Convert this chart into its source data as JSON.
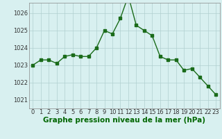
{
  "x": [
    0,
    1,
    2,
    3,
    4,
    5,
    6,
    7,
    8,
    9,
    10,
    11,
    12,
    13,
    14,
    15,
    16,
    17,
    18,
    19,
    20,
    21,
    22,
    23
  ],
  "y": [
    1023.0,
    1023.3,
    1023.3,
    1023.1,
    1023.5,
    1023.6,
    1023.5,
    1023.5,
    1024.0,
    1025.0,
    1024.8,
    1025.7,
    1027.0,
    1025.3,
    1025.0,
    1024.7,
    1023.5,
    1023.3,
    1023.3,
    1022.7,
    1022.8,
    1022.3,
    1021.8,
    1021.3
  ],
  "ylim": [
    1020.5,
    1026.6
  ],
  "yticks": [
    1021,
    1022,
    1023,
    1024,
    1025,
    1026
  ],
  "xticks": [
    0,
    1,
    2,
    3,
    4,
    5,
    6,
    7,
    8,
    9,
    10,
    11,
    12,
    13,
    14,
    15,
    16,
    17,
    18,
    19,
    20,
    21,
    22,
    23
  ],
  "line_color": "#1a6b1a",
  "marker": "s",
  "marker_size": 2.5,
  "bg_color": "#d8f0f0",
  "grid_color": "#b0d0d0",
  "xlabel": "Graphe pression niveau de la mer (hPa)",
  "xlabel_color": "#006600",
  "xlabel_fontsize": 7.5,
  "tick_fontsize": 6.0
}
